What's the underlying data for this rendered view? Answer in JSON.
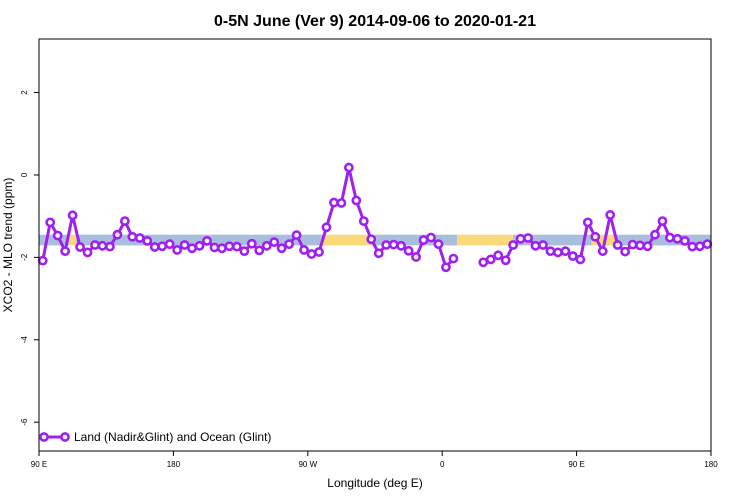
{
  "chart_data": {
    "type": "line",
    "title": "0-5N June (Ver 9)   2014-09-06 to 2020-01-21",
    "xlabel": "Longitude (deg E)",
    "ylabel": "XCO2 - MLO trend (ppm)",
    "xlim": [
      0,
      360
    ],
    "ylim": [
      -6.7,
      3.3
    ],
    "x_ticks": [
      {
        "value": 0,
        "label": "90 E"
      },
      {
        "value": 72,
        "label": "180"
      },
      {
        "value": 144,
        "label": "90 W"
      },
      {
        "value": 216,
        "label": "0"
      },
      {
        "value": 288,
        "label": "90 E"
      },
      {
        "value": 360,
        "label": "180"
      }
    ],
    "y_ticks": [
      {
        "value": 2,
        "label": "2"
      },
      {
        "value": 0,
        "label": "0"
      },
      {
        "value": -2,
        "label": "-2"
      },
      {
        "value": -4,
        "label": "-4"
      },
      {
        "value": -6,
        "label": "-6"
      }
    ],
    "background_bands": {
      "y_center": -1.58,
      "y_halfwidth": 0.13,
      "segments": [
        {
          "x0": 0,
          "x1": 16,
          "type": "ocean",
          "color": "#a9bddd"
        },
        {
          "x0": 16,
          "x1": 20,
          "type": "land",
          "color": "#fbd97a"
        },
        {
          "x0": 20,
          "x1": 152,
          "type": "ocean",
          "color": "#a9bddd"
        },
        {
          "x0": 152,
          "x1": 180,
          "type": "land",
          "color": "#fbd97a"
        },
        {
          "x0": 180,
          "x1": 224,
          "type": "ocean",
          "color": "#a9bddd"
        },
        {
          "x0": 224,
          "x1": 254,
          "type": "land",
          "color": "#fbd97a"
        },
        {
          "x0": 254,
          "x1": 296,
          "type": "ocean",
          "color": "#a9bddd"
        },
        {
          "x0": 296,
          "x1": 309,
          "type": "land",
          "color": "#fbd97a"
        },
        {
          "x0": 309,
          "x1": 360,
          "type": "ocean",
          "color": "#a9bddd"
        }
      ]
    },
    "series": [
      {
        "name": "Land (Nadir&Glint) and Ocean (Glint)",
        "color": "#a020f0",
        "segments": [
          {
            "x": [
              2,
              6,
              10,
              14,
              18,
              22,
              26,
              30,
              34,
              38,
              42,
              46,
              50,
              54,
              58,
              62,
              66,
              70,
              74,
              78,
              82,
              86,
              90,
              94,
              98,
              102,
              106,
              110,
              114,
              118,
              122,
              126,
              130,
              134,
              138,
              142,
              146,
              150,
              154,
              158,
              162,
              166,
              170,
              174,
              178,
              182,
              186,
              190,
              194,
              198,
              202,
              206,
              210,
              214,
              218,
              222
            ],
            "y": [
              -2.08,
              -1.15,
              -1.47,
              -1.85,
              -0.98,
              -1.75,
              -1.88,
              -1.7,
              -1.72,
              -1.74,
              -1.45,
              -1.12,
              -1.5,
              -1.53,
              -1.6,
              -1.75,
              -1.73,
              -1.68,
              -1.82,
              -1.7,
              -1.78,
              -1.72,
              -1.6,
              -1.76,
              -1.78,
              -1.73,
              -1.74,
              -1.85,
              -1.67,
              -1.83,
              -1.72,
              -1.63,
              -1.78,
              -1.68,
              -1.46,
              -1.82,
              -1.92,
              -1.87,
              -1.27,
              -0.67,
              -0.68,
              0.18,
              -0.62,
              -1.12,
              -1.56,
              -1.9,
              -1.7,
              -1.69,
              -1.72,
              -1.84,
              -1.99,
              -1.58,
              -1.52,
              -1.68,
              -2.24,
              -2.03
            ]
          },
          {
            "x": [
              238,
              242,
              246,
              250,
              254,
              258,
              262,
              266,
              270,
              274,
              278,
              282,
              286,
              290,
              294,
              298,
              302,
              306,
              310,
              314,
              318,
              322,
              326,
              330,
              334,
              338,
              342,
              346,
              350,
              354,
              358
            ],
            "y": [
              -2.12,
              -2.05,
              -1.95,
              -2.07,
              -1.7,
              -1.55,
              -1.53,
              -1.72,
              -1.7,
              -1.85,
              -1.88,
              -1.85,
              -1.97,
              -2.05,
              -1.15,
              -1.5,
              -1.85,
              -0.97,
              -1.7,
              -1.86,
              -1.69,
              -1.71,
              -1.73,
              -1.45,
              -1.12,
              -1.52,
              -1.55,
              -1.6,
              -1.74,
              -1.73,
              -1.68
            ]
          }
        ]
      }
    ],
    "legend": {
      "position": "bottom-left",
      "label": "Land (Nadir&Glint) and Ocean (Glint)"
    }
  }
}
